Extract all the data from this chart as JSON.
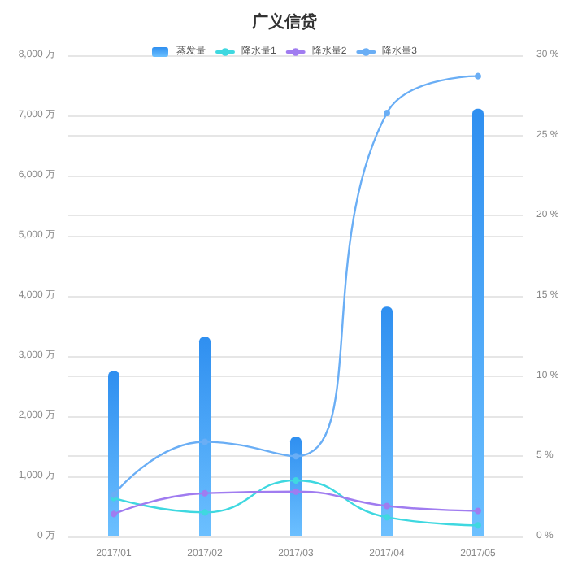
{
  "chart_data": {
    "type": "bar",
    "title": "广义信贷",
    "categories": [
      "2017/01",
      "2017/02",
      "2017/03",
      "2017/04",
      "2017/05"
    ],
    "series": [
      {
        "name": "蒸发量",
        "color": "#2f8ff0",
        "values": [
          2750,
          3320,
          1660,
          3820,
          7110
        ]
      },
      {
        "name": "降水量1",
        "type": "line",
        "axis": "y2",
        "color": "#3fd8e0",
        "values": [
          2.4,
          1.5,
          3.5,
          1.2,
          0.7
        ]
      },
      {
        "name": "降水量2",
        "type": "line",
        "axis": "y2",
        "color": "#a07cf0",
        "values": [
          1.4,
          2.7,
          2.8,
          1.9,
          1.6
        ]
      },
      {
        "name": "降水量3",
        "type": "line",
        "axis": "y2",
        "color": "#6aaef5",
        "values": [
          2.6,
          5.9,
          5.0,
          26.4,
          28.7
        ]
      }
    ],
    "ylim": [
      0,
      8000
    ],
    "yticks": [
      {
        "value": 0,
        "label": "0 万"
      },
      {
        "value": 1000,
        "label": "1,000 万"
      },
      {
        "value": 2000,
        "label": "2,000 万"
      },
      {
        "value": 3000,
        "label": "3,000 万"
      },
      {
        "value": 4000,
        "label": "4,000 万"
      },
      {
        "value": 5000,
        "label": "5,000 万"
      },
      {
        "value": 6000,
        "label": "6,000 万"
      },
      {
        "value": 7000,
        "label": "7,000 万"
      },
      {
        "value": 8000,
        "label": "8,000 万"
      }
    ],
    "y2lim": [
      0,
      30
    ],
    "y2ticks": [
      {
        "value": 0,
        "label": "0 %"
      },
      {
        "value": 5,
        "label": "5 %"
      },
      {
        "value": 10,
        "label": "10 %"
      },
      {
        "value": 15,
        "label": "15 %"
      },
      {
        "value": 20,
        "label": "20 %"
      },
      {
        "value": 25,
        "label": "25 %"
      },
      {
        "value": 30,
        "label": "30 %"
      }
    ],
    "grid": true,
    "legend": "top",
    "marker": "circle",
    "line_style": "solid"
  }
}
